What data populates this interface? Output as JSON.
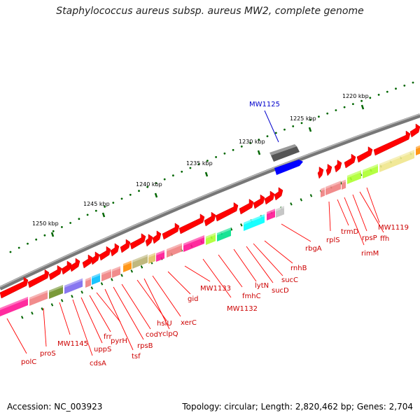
{
  "title": "Staphylococcus aureus subsp. aureus MW2, complete genome",
  "footer": {
    "accession": "Accession: NC_003923",
    "summary": "Topology: circular; Length: 2,820,462 bp; Genes: 2,704"
  },
  "scale_ticks": [
    "1220 kbp",
    "1225 kbp",
    "1230 kbp",
    "1235 kbp",
    "1240 kbp",
    "1245 kbp",
    "1250 kbp"
  ],
  "highlight": {
    "name": "MW1125",
    "color": "#0000cc"
  },
  "colors": {
    "gene_red": "#ff0000",
    "label_red": "#cc0000",
    "backbone": "#808080",
    "tick_green": "#006600"
  },
  "gene_labels": [
    "polC",
    "proS",
    "MW1145",
    "cdsA",
    "uppS",
    "frr",
    "pyrH",
    "tsf",
    "rpsB",
    "codY",
    "hslU",
    "clpQ",
    "xerC",
    "gid",
    "MW1133",
    "MW1132",
    "fmhC",
    "lytN",
    "sucD",
    "sucC",
    "rnhB",
    "rbgA",
    "rplS",
    "trmD",
    "rimM",
    "rpsP",
    "ffh",
    "MW1119"
  ]
}
